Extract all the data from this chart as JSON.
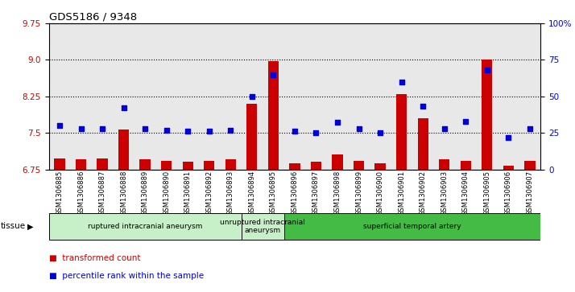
{
  "title": "GDS5186 / 9348",
  "samples": [
    "GSM1306885",
    "GSM1306886",
    "GSM1306887",
    "GSM1306888",
    "GSM1306889",
    "GSM1306890",
    "GSM1306891",
    "GSM1306892",
    "GSM1306893",
    "GSM1306894",
    "GSM1306895",
    "GSM1306896",
    "GSM1306897",
    "GSM1306898",
    "GSM1306899",
    "GSM1306900",
    "GSM1306901",
    "GSM1306902",
    "GSM1306903",
    "GSM1306904",
    "GSM1306905",
    "GSM1306906",
    "GSM1306907"
  ],
  "red_values": [
    6.97,
    6.95,
    6.97,
    7.57,
    6.96,
    6.93,
    6.91,
    6.92,
    6.95,
    8.1,
    8.97,
    6.88,
    6.9,
    7.05,
    6.92,
    6.87,
    8.3,
    7.8,
    6.95,
    6.92,
    9.0,
    6.83,
    6.92
  ],
  "blue_values_pct": [
    30,
    28,
    28,
    42,
    28,
    27,
    26,
    26,
    27,
    50,
    65,
    26,
    25,
    32,
    28,
    25,
    60,
    43,
    28,
    33,
    68,
    22,
    28
  ],
  "groups": [
    {
      "label": "ruptured intracranial aneurysm",
      "start": 0,
      "end": 9,
      "color": "#c8f0c8"
    },
    {
      "label": "unruptured intracranial\naneurysm",
      "start": 9,
      "end": 11,
      "color": "#c8f0c8"
    },
    {
      "label": "superficial temporal artery",
      "start": 11,
      "end": 23,
      "color": "#44bb44"
    }
  ],
  "ylim_left": [
    6.75,
    9.75
  ],
  "ylim_right": [
    0,
    100
  ],
  "yticks_left": [
    6.75,
    7.5,
    8.25,
    9.0,
    9.75
  ],
  "yticks_right": [
    0,
    25,
    50,
    75,
    100
  ],
  "bar_color": "#cc0000",
  "dot_color": "#0000dd",
  "bar_bottom": 6.75,
  "col_bg_even": "#e8e8e8",
  "col_bg_odd": "#e8e8e8",
  "plot_bg": "#ffffff"
}
